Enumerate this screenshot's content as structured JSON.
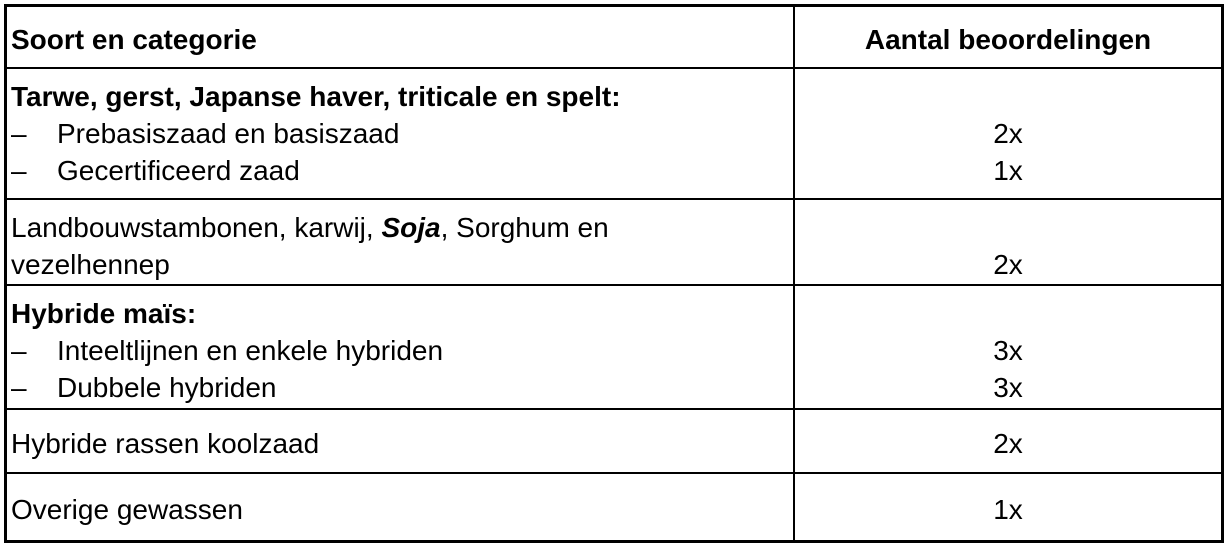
{
  "colors": {
    "border": "#000000",
    "text": "#000000",
    "background": "#ffffff"
  },
  "glyphs": {
    "dash": "–"
  },
  "table": {
    "columns": [
      {
        "label": "Soort en categorie"
      },
      {
        "label": "Aantal beoordelingen"
      }
    ],
    "rows": [
      {
        "heading": "Tarwe, gerst, Japanse haver, triticale en spelt:",
        "items": [
          {
            "label": "Prebasiszaad en basiszaad",
            "value": "2x"
          },
          {
            "label": "Gecertificeerd zaad",
            "value": "1x"
          }
        ]
      },
      {
        "line1_segments": [
          "Landbouwstambonen, karwij, ",
          "Soja",
          ", Sorghum en"
        ],
        "line2": "vezelhennep",
        "value": "2x"
      },
      {
        "heading": "Hybride maïs:",
        "items": [
          {
            "label": "Inteeltlijnen en enkele hybriden",
            "value": "3x"
          },
          {
            "label": "Dubbele hybriden",
            "value": "3x"
          }
        ]
      },
      {
        "label": "Hybride rassen koolzaad",
        "value": "2x"
      },
      {
        "label": "Overige gewassen",
        "value": "1x"
      }
    ]
  }
}
